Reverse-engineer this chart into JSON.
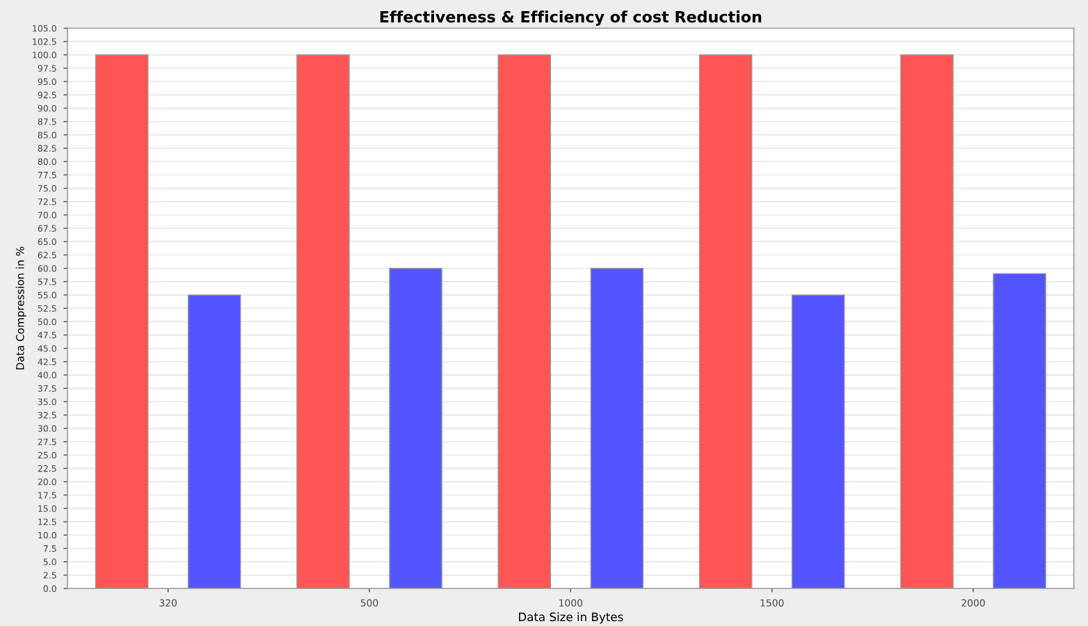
{
  "chart_data": {
    "type": "bar",
    "title": "Effectiveness & Efficiency of cost Reduction",
    "xlabel": "Data Size in Bytes",
    "ylabel": "Data Compression in %",
    "categories": [
      "320",
      "500",
      "1000",
      "1500",
      "2000"
    ],
    "series": [
      {
        "color": "#ff5555",
        "values": [
          100,
          100,
          100,
          100,
          100
        ]
      },
      {
        "color": "#5555ff",
        "values": [
          55,
          60,
          60,
          55,
          59
        ]
      }
    ],
    "ylim": [
      0,
      105
    ],
    "yticks": [
      {
        "value": 0,
        "label": "0.0"
      },
      {
        "value": 2.5,
        "label": "2.5"
      },
      {
        "value": 5,
        "label": "5.0"
      },
      {
        "value": 7.5,
        "label": "7.5"
      },
      {
        "value": 10,
        "label": "10.0"
      },
      {
        "value": 12.5,
        "label": "12.5"
      },
      {
        "value": 15,
        "label": "15.0"
      },
      {
        "value": 17.5,
        "label": "17.5"
      },
      {
        "value": 20,
        "label": "20.0"
      },
      {
        "value": 22.5,
        "label": "22.5"
      },
      {
        "value": 25,
        "label": "25.0"
      },
      {
        "value": 27.5,
        "label": "27.5"
      },
      {
        "value": 30,
        "label": "30.0"
      },
      {
        "value": 32.5,
        "label": "32.5"
      },
      {
        "value": 35,
        "label": "35.0"
      },
      {
        "value": 37.5,
        "label": "37.5"
      },
      {
        "value": 40,
        "label": "40.0"
      },
      {
        "value": 42.5,
        "label": "42.5"
      },
      {
        "value": 45,
        "label": "45.0"
      },
      {
        "value": 47.5,
        "label": "47.5"
      },
      {
        "value": 50,
        "label": "50.0"
      },
      {
        "value": 52.5,
        "label": "52.5"
      },
      {
        "value": 55,
        "label": "55.0"
      },
      {
        "value": 57.5,
        "label": "57.5"
      },
      {
        "value": 60,
        "label": "60.0"
      },
      {
        "value": 62.5,
        "label": "62.5"
      },
      {
        "value": 65,
        "label": "65.0"
      },
      {
        "value": 67.5,
        "label": "67.5"
      },
      {
        "value": 70,
        "label": "70.0"
      },
      {
        "value": 72.5,
        "label": "72.5"
      },
      {
        "value": 75,
        "label": "75.0"
      },
      {
        "value": 77.5,
        "label": "77.5"
      },
      {
        "value": 80,
        "label": "80.0"
      },
      {
        "value": 82.5,
        "label": "82.5"
      },
      {
        "value": 85,
        "label": "85.0"
      },
      {
        "value": 87.5,
        "label": "87.5"
      },
      {
        "value": 90,
        "label": "90.0"
      },
      {
        "value": 92.5,
        "label": "92.5"
      },
      {
        "value": 95,
        "label": "95.0"
      },
      {
        "value": 97.5,
        "label": "97.5"
      },
      {
        "value": 100,
        "label": "100.0"
      },
      {
        "value": 102.5,
        "label": "102.5"
      },
      {
        "value": 105,
        "label": "105.0"
      }
    ],
    "grid": "y"
  }
}
